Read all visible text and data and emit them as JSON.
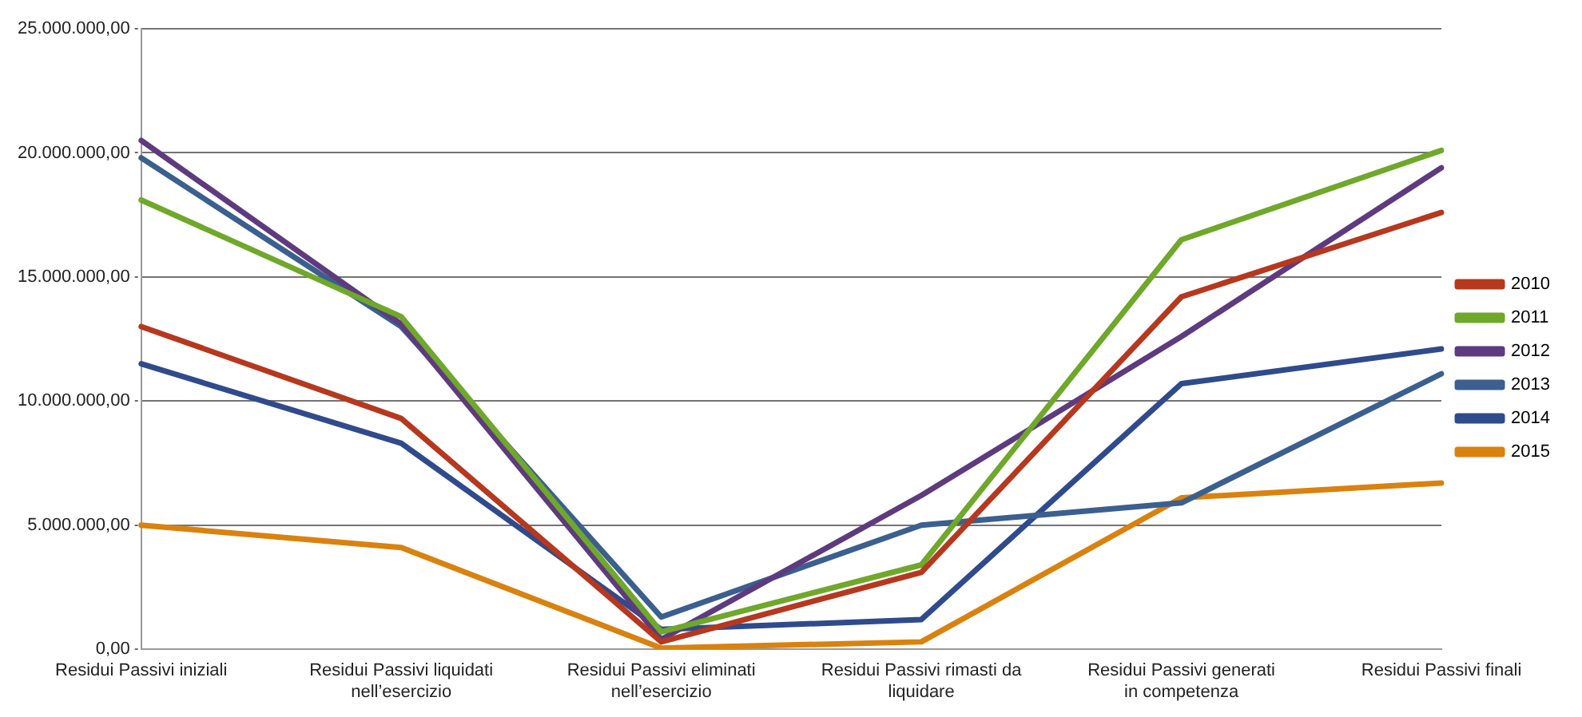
{
  "chart_data": {
    "type": "line",
    "categories": [
      "Residui Passivi iniziali",
      "Residui Passivi liquidati nell’esercizio",
      "Residui Passivi eliminati nell’esercizio",
      "Residui Passivi rimasti da liquidare",
      "Residui Passivi generati in competenza",
      "Residui Passivi finali"
    ],
    "series": [
      {
        "name": "2010",
        "color": "#b5381f",
        "values": [
          13000000,
          9300000,
          300000,
          3100000,
          14200000,
          17600000
        ]
      },
      {
        "name": "2011",
        "color": "#6fa82a",
        "values": [
          18100000,
          13400000,
          700000,
          3400000,
          16500000,
          20100000
        ]
      },
      {
        "name": "2012",
        "color": "#5e3a7e",
        "values": [
          20500000,
          13100000,
          400000,
          6200000,
          12600000,
          19400000
        ]
      },
      {
        "name": "2013",
        "color": "#3b5f8e",
        "values": [
          19800000,
          13000000,
          1300000,
          5000000,
          5900000,
          11100000
        ]
      },
      {
        "name": "2014",
        "color": "#2f4b8c",
        "values": [
          11500000,
          8300000,
          800000,
          1200000,
          10700000,
          12100000
        ]
      },
      {
        "name": "2015",
        "color": "#d9820f",
        "values": [
          5000000,
          4100000,
          50000,
          300000,
          6100000,
          6700000
        ]
      }
    ],
    "ylim": [
      0,
      25000000
    ],
    "yticks": [
      {
        "value": 0,
        "label": "0,00"
      },
      {
        "value": 5000000,
        "label": "5.000.000,00"
      },
      {
        "value": 10000000,
        "label": "10.000.000,00"
      },
      {
        "value": 15000000,
        "label": "15.000.000,00"
      },
      {
        "value": 20000000,
        "label": "20.000.000,00"
      },
      {
        "value": 25000000,
        "label": "25.000.000,00"
      }
    ],
    "grid": "y",
    "legend": "right",
    "marker": "none",
    "line_style": "solid"
  }
}
